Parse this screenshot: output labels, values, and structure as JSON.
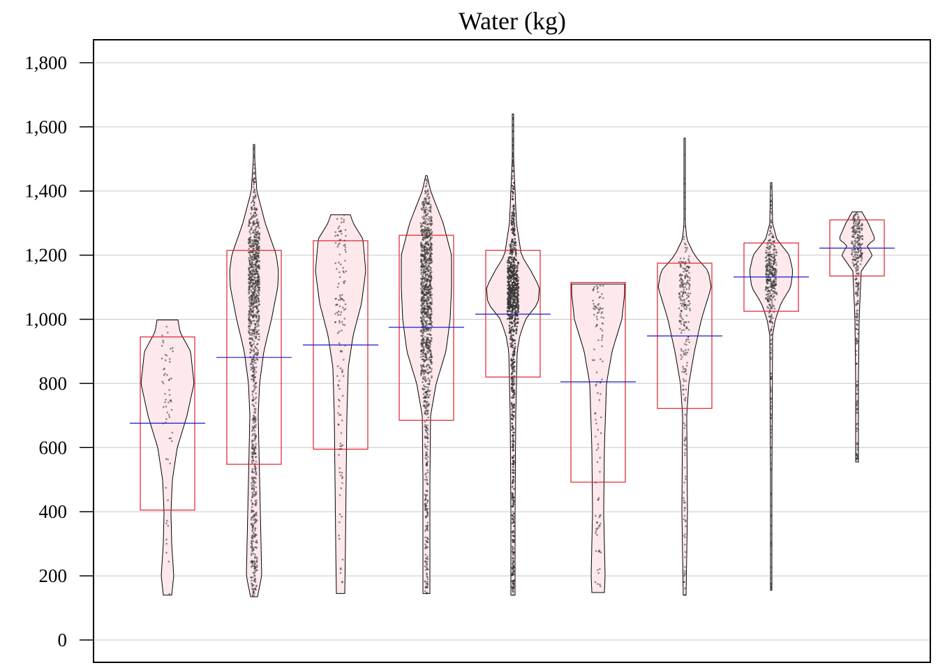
{
  "chart_data": {
    "type": "violin",
    "title": "Water (kg)",
    "xlabel": "",
    "ylabel": "",
    "ylim": [
      -70,
      1870
    ],
    "yticks": [
      0,
      200,
      400,
      600,
      800,
      1000,
      1200,
      1400,
      1600,
      1800
    ],
    "ytick_labels": [
      "0",
      "200",
      "400",
      "600",
      "800",
      "1,000",
      "1,200",
      "1,400",
      "1,600",
      "1,800"
    ],
    "grid": true,
    "legend": "none",
    "colors": {
      "violin_fill": "#fde8ec",
      "box_stroke": "#e0202a",
      "mean_line": "#1a1acc",
      "points": "#333333"
    },
    "groups": [
      {
        "min": 140,
        "max": 998,
        "box_low": 405,
        "box_high": 945,
        "mean": 676,
        "points": 60,
        "density": [
          [
            140,
            6
          ],
          [
            200,
            9
          ],
          [
            300,
            6
          ],
          [
            400,
            5
          ],
          [
            500,
            7
          ],
          [
            600,
            14
          ],
          [
            700,
            28
          ],
          [
            800,
            38
          ],
          [
            900,
            33
          ],
          [
            960,
            18
          ],
          [
            998,
            15
          ]
        ]
      },
      {
        "min": 135,
        "max": 1545,
        "box_low": 548,
        "box_high": 1215,
        "mean": 881,
        "points": 1100,
        "density": [
          [
            135,
            5
          ],
          [
            200,
            11
          ],
          [
            300,
            10
          ],
          [
            400,
            9
          ],
          [
            500,
            8
          ],
          [
            600,
            7
          ],
          [
            700,
            6
          ],
          [
            800,
            8
          ],
          [
            900,
            14
          ],
          [
            1000,
            25
          ],
          [
            1100,
            34
          ],
          [
            1150,
            35
          ],
          [
            1200,
            32
          ],
          [
            1300,
            16
          ],
          [
            1400,
            4
          ],
          [
            1500,
            1
          ],
          [
            1545,
            1
          ]
        ]
      },
      {
        "min": 145,
        "max": 1326,
        "box_low": 595,
        "box_high": 1245,
        "mean": 920,
        "points": 140,
        "density": [
          [
            145,
            6
          ],
          [
            300,
            7
          ],
          [
            500,
            8
          ],
          [
            700,
            9
          ],
          [
            850,
            11
          ],
          [
            950,
            18
          ],
          [
            1050,
            30
          ],
          [
            1150,
            36
          ],
          [
            1250,
            32
          ],
          [
            1300,
            18
          ],
          [
            1326,
            14
          ]
        ]
      },
      {
        "min": 145,
        "max": 1448,
        "box_low": 685,
        "box_high": 1262,
        "mean": 975,
        "points": 1200,
        "density": [
          [
            145,
            5
          ],
          [
            300,
            5
          ],
          [
            500,
            5
          ],
          [
            700,
            6
          ],
          [
            800,
            14
          ],
          [
            900,
            28
          ],
          [
            1000,
            34
          ],
          [
            1100,
            36
          ],
          [
            1200,
            36
          ],
          [
            1300,
            24
          ],
          [
            1400,
            6
          ],
          [
            1448,
            1
          ]
        ]
      },
      {
        "min": 140,
        "max": 1640,
        "box_low": 820,
        "box_high": 1215,
        "mean": 1016,
        "points": 1600,
        "density": [
          [
            140,
            3
          ],
          [
            400,
            3
          ],
          [
            700,
            4
          ],
          [
            900,
            6
          ],
          [
            950,
            10
          ],
          [
            1000,
            18
          ],
          [
            1050,
            36
          ],
          [
            1100,
            38
          ],
          [
            1150,
            26
          ],
          [
            1200,
            12
          ],
          [
            1300,
            5
          ],
          [
            1400,
            3
          ],
          [
            1500,
            1
          ],
          [
            1640,
            1
          ]
        ]
      },
      {
        "min": 148,
        "max": 1110,
        "box_low": 492,
        "box_high": 1115,
        "mean": 805,
        "points": 110,
        "density": [
          [
            148,
            9
          ],
          [
            200,
            10
          ],
          [
            400,
            8
          ],
          [
            600,
            9
          ],
          [
            800,
            12
          ],
          [
            900,
            20
          ],
          [
            1000,
            34
          ],
          [
            1080,
            38
          ],
          [
            1110,
            38
          ]
        ]
      },
      {
        "min": 140,
        "max": 1565,
        "box_low": 722,
        "box_high": 1175,
        "mean": 948,
        "points": 260,
        "density": [
          [
            140,
            2
          ],
          [
            400,
            4
          ],
          [
            700,
            3
          ],
          [
            800,
            6
          ],
          [
            900,
            14
          ],
          [
            1000,
            24
          ],
          [
            1100,
            38
          ],
          [
            1150,
            34
          ],
          [
            1200,
            14
          ],
          [
            1250,
            3
          ],
          [
            1300,
            1
          ],
          [
            1565,
            1
          ]
        ]
      },
      {
        "min": 155,
        "max": 1426,
        "box_low": 1025,
        "box_high": 1238,
        "mean": 1132,
        "points": 420,
        "density": [
          [
            155,
            1
          ],
          [
            500,
            1
          ],
          [
            950,
            2
          ],
          [
            1000,
            6
          ],
          [
            1050,
            14
          ],
          [
            1100,
            28
          ],
          [
            1150,
            31
          ],
          [
            1200,
            26
          ],
          [
            1250,
            8
          ],
          [
            1300,
            2
          ],
          [
            1426,
            1
          ]
        ]
      },
      {
        "min": 555,
        "max": 1335,
        "box_low": 1135,
        "box_high": 1310,
        "mean": 1222,
        "points": 300,
        "density": [
          [
            555,
            2
          ],
          [
            800,
            2
          ],
          [
            1000,
            3
          ],
          [
            1150,
            6
          ],
          [
            1200,
            22
          ],
          [
            1230,
            14
          ],
          [
            1250,
            26
          ],
          [
            1300,
            16
          ],
          [
            1335,
            7
          ]
        ]
      }
    ]
  }
}
